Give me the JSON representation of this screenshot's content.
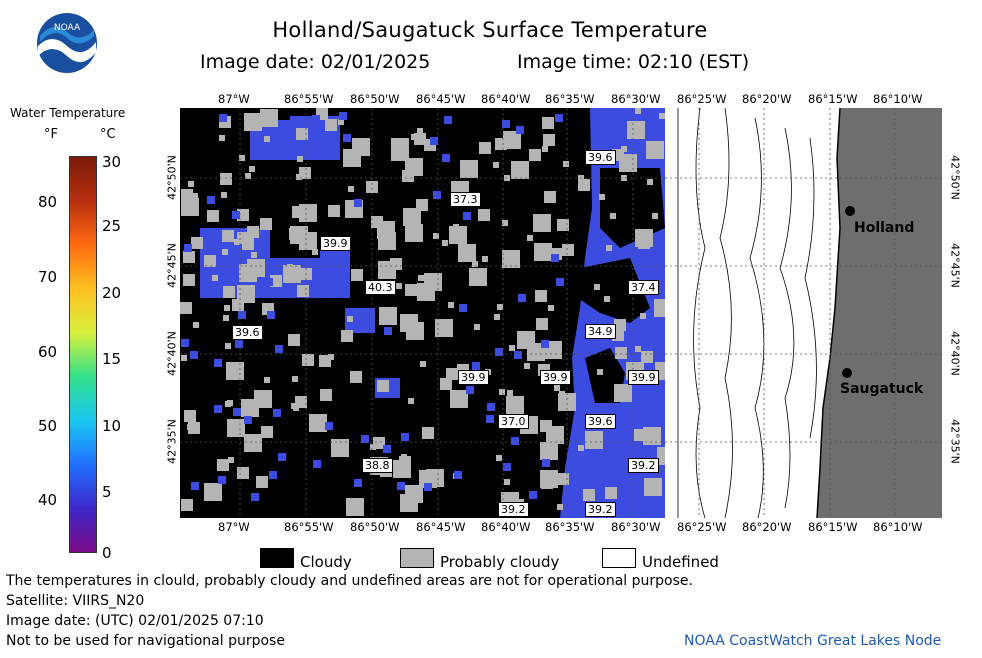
{
  "header": {
    "title": "Holland/Saugatuck Surface Temperature",
    "image_date_label": "Image date: 02/01/2025",
    "image_time_label": "Image time: 02:10 (EST)"
  },
  "logo": {
    "text": "NOAA",
    "colors": {
      "outer": "#1a4fa0",
      "inner": "#2b8ad6",
      "bird": "#ffffff"
    }
  },
  "colorbar": {
    "title": "Water Temperature",
    "unit_f": "°F",
    "unit_c": "°C",
    "fahrenheit_ticks": [
      "80",
      "70",
      "60",
      "50",
      "40"
    ],
    "celsius_ticks": [
      "30",
      "25",
      "20",
      "15",
      "10",
      "5",
      "0"
    ],
    "gradient": [
      "#7b0b8a",
      "#3c28c8",
      "#2070ff",
      "#19c8f0",
      "#34e08a",
      "#d8f03c",
      "#ffc020",
      "#ff6a10",
      "#b83010",
      "#7a1a08"
    ]
  },
  "map": {
    "longitude_labels": [
      "87°W",
      "86°55'W",
      "86°50'W",
      "86°45'W",
      "86°40'W",
      "86°35'W",
      "86°30'W",
      "86°25'W",
      "86°20'W",
      "86°15'W",
      "86°10'W"
    ],
    "latitude_labels": [
      "42°50'N",
      "42°45'N",
      "42°40'N",
      "42°35'N"
    ],
    "temperature_labels": [
      "39.6",
      "37.3",
      "39.9",
      "40.3",
      "39.6",
      "37.4",
      "34.9",
      "39.9",
      "39.9",
      "39.9",
      "37.0",
      "39.6",
      "38.8",
      "39.2",
      "39.2",
      "39.2"
    ],
    "cities": [
      "Holland",
      "Saugatuck"
    ],
    "colors": {
      "cloud": "#000000",
      "probably_cloudy": "#b4b4b4",
      "water": "#3c4be0",
      "land": "#6e6e6e",
      "undefined": "#ffffff"
    }
  },
  "legend": {
    "items": [
      "Cloudy",
      "Probably cloudy",
      "Undefined"
    ]
  },
  "footer": {
    "disclaimer": "The temperatures in clould, probably cloudy and undefined areas are not for operational purpose.",
    "satellite": "Satellite: VIIRS_N20",
    "utc_date": "Image date: (UTC) 02/01/2025  07:10",
    "nav_warning": "Not to be used for navigational purpose",
    "credit": "NOAA CoastWatch Great Lakes Node"
  }
}
